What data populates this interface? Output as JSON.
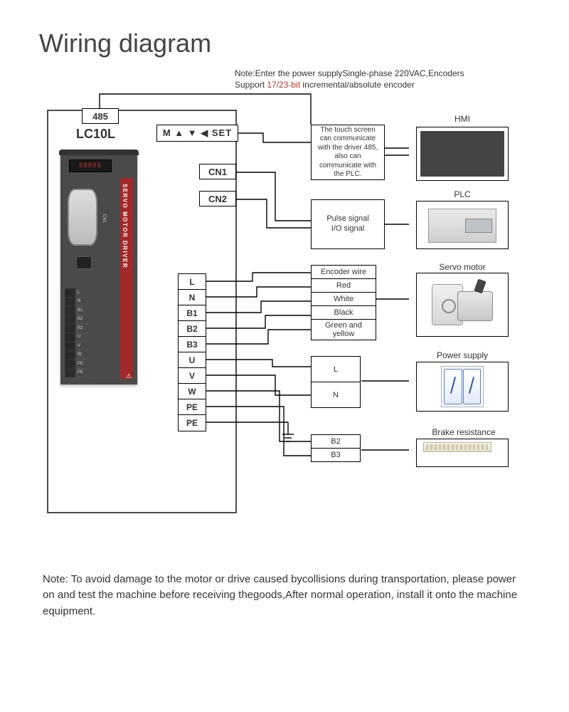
{
  "title": "Wiring diagram",
  "top_note": {
    "line1": "Note:Enter the power supplySingle-phase 220VAC,Encoders",
    "line2a": "Support ",
    "line2_hl": "17/23-bit",
    "line2b": " incremental/absolute encoder"
  },
  "left": {
    "bus_label": "485",
    "model": "LC10L",
    "set_panel": "M ▲ ▼ ◀ SET",
    "ports": {
      "cn1": "CN1",
      "cn2": "CN2"
    },
    "terminals": [
      "L",
      "N",
      "B1",
      "B2",
      "B3",
      "U",
      "V",
      "W",
      "PE",
      "PE"
    ]
  },
  "driver": {
    "display": "88888",
    "side_text": "SERVO MOTOR DRIVER",
    "pin_labels": [
      "L",
      "N",
      "B1",
      "B2",
      "B3",
      "U",
      "V",
      "W",
      "PE",
      "PE"
    ],
    "warn": "⚠"
  },
  "right": {
    "touch_desc": "The touch screen can communicate with the driver 485, also can communicate with the PLC.",
    "hmi_label": "HMI",
    "pulse_desc_l1": "Pulse signal",
    "pulse_desc_l2": "I/O signal",
    "plc_label": "PLC",
    "encoder_header": "Encoder wire",
    "encoder_colors": [
      "Red",
      "White",
      "Black",
      "Green and yellow"
    ],
    "servo_label": "Servo motor",
    "power_pins": [
      "L",
      "N"
    ],
    "power_label": "Power supply",
    "brake_pins": [
      "B2",
      "B3"
    ],
    "brake_label": "Brake resistance"
  },
  "bottom_note": "Note: To avoid damage to the motor or drive caused bycollisions during transportation, please power on and test the machine before receiving thegoods,After normal operation, install it onto the machine equipment.",
  "colors": {
    "wire": "#000000",
    "accent_red": "#c0392b",
    "driver_body": "#4a4a4a",
    "driver_red": "#a52828"
  }
}
